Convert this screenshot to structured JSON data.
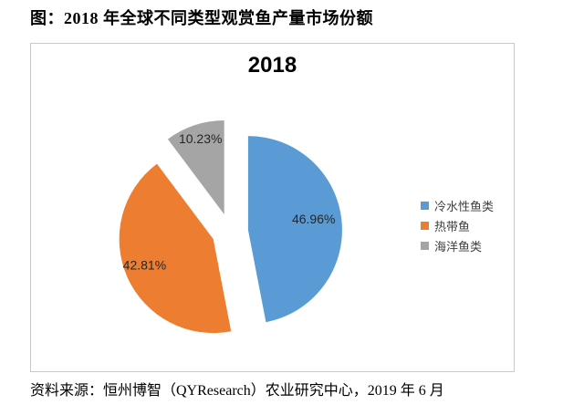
{
  "document": {
    "title": "图：2018 年全球不同类型观赏鱼产量市场份额",
    "source_note": "资料来源：恒州博智（QYResearch）农业研究中心，2019 年 6 月"
  },
  "chart_data": {
    "type": "pie",
    "title": "2018",
    "categories": [
      "冷水性鱼类",
      "热带鱼",
      "海洋鱼类"
    ],
    "values": [
      46.96,
      42.81,
      10.23
    ],
    "data_labels": [
      "46.96%",
      "42.81%",
      "10.23%"
    ],
    "colors": [
      "#5B9BD5",
      "#ED7D31",
      "#A5A5A5"
    ],
    "label_color": "#262626",
    "legend": {
      "position": "right",
      "entries": [
        "冷水性鱼类",
        "热带鱼",
        "海洋鱼类"
      ]
    },
    "style": {
      "exploded": true,
      "start_angle_deg": 0,
      "direction": "clockwise",
      "frame_border_color": "#C9C9C9"
    }
  }
}
